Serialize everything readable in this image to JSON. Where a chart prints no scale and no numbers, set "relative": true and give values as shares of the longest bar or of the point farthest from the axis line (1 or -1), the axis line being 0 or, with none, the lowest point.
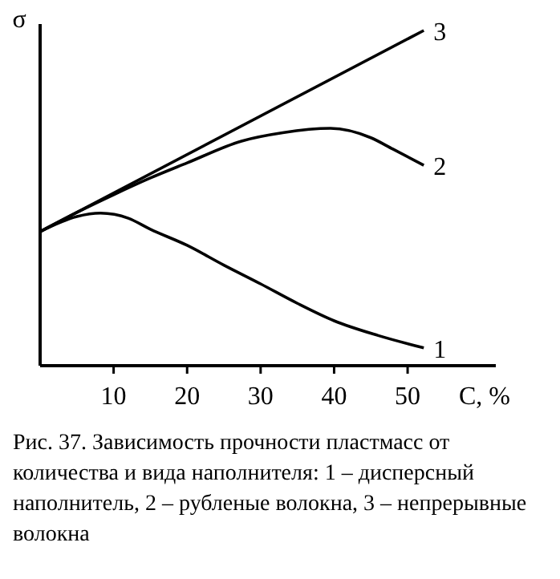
{
  "chart_data": {
    "type": "line",
    "relative": true,
    "xlabel": "C, %",
    "ylabel": "σ",
    "xlim": [
      0,
      62
    ],
    "xticks": [
      10,
      20,
      30,
      40,
      50
    ],
    "marker": "none",
    "line_style": "solid",
    "grid": false,
    "annotations": [
      "Рис. 37. Зависимость прочности пластмасс от количества и вида наполнителя: 1 – дисперсный наполнитель, 2 – рубленые волокна, 3 – непрерывные волокна"
    ],
    "series": [
      {
        "name": "3",
        "color": "#000000",
        "x": [
          0,
          52.2
        ],
        "values": [
          0.4,
          1.0
        ]
      },
      {
        "name": "2",
        "color": "#000000",
        "x": [
          0,
          5,
          10,
          15,
          20,
          27.4,
          33,
          39.5,
          45,
          48,
          52.2
        ],
        "values": [
          0.4,
          0.457,
          0.51,
          0.56,
          0.605,
          0.67,
          0.695,
          0.708,
          0.68,
          0.646,
          0.598
        ]
      },
      {
        "name": "1",
        "color": "#000000",
        "x": [
          0,
          5,
          8.2,
          12,
          15,
          20,
          25,
          30,
          35,
          40,
          46,
          52.2
        ],
        "values": [
          0.4,
          0.445,
          0.455,
          0.44,
          0.407,
          0.359,
          0.3,
          0.244,
          0.186,
          0.134,
          0.09,
          0.053
        ]
      }
    ]
  }
}
